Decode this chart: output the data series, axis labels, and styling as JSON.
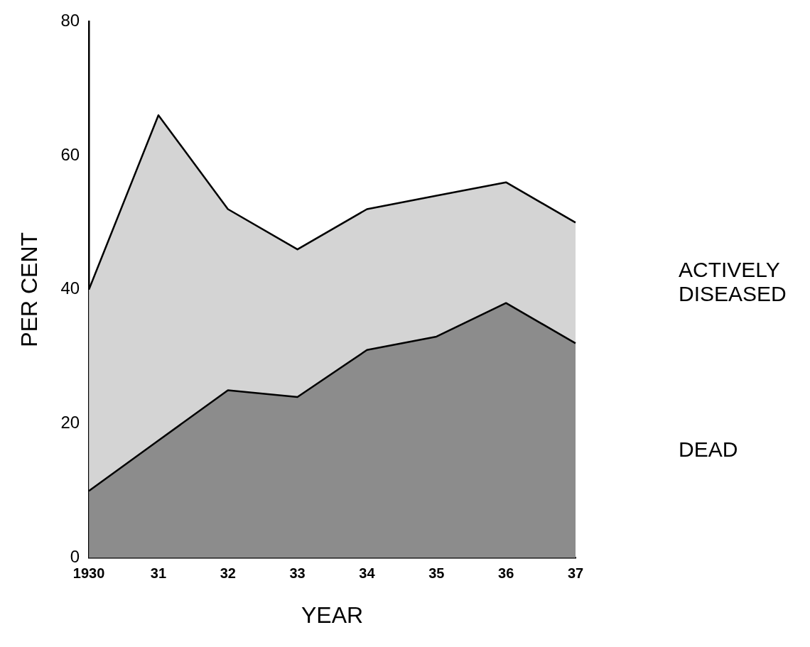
{
  "chart_data": {
    "type": "area",
    "stacked": true,
    "xlabel": "YEAR",
    "ylabel": "PER CENT",
    "categories": [
      "1930",
      "31",
      "32",
      "33",
      "34",
      "35",
      "36",
      "37"
    ],
    "series": [
      {
        "name": "DEAD",
        "color": "#8c8c8c",
        "values": [
          10,
          17.5,
          25,
          24,
          31,
          33,
          38,
          32
        ]
      },
      {
        "name": "ACTIVELY DISEASED",
        "color": "#d4d4d4",
        "values": [
          30,
          48.5,
          27,
          22,
          21,
          21,
          18,
          18
        ]
      }
    ],
    "ylim": [
      0,
      80
    ],
    "yticks": [
      0,
      20,
      40,
      60,
      80
    ]
  }
}
